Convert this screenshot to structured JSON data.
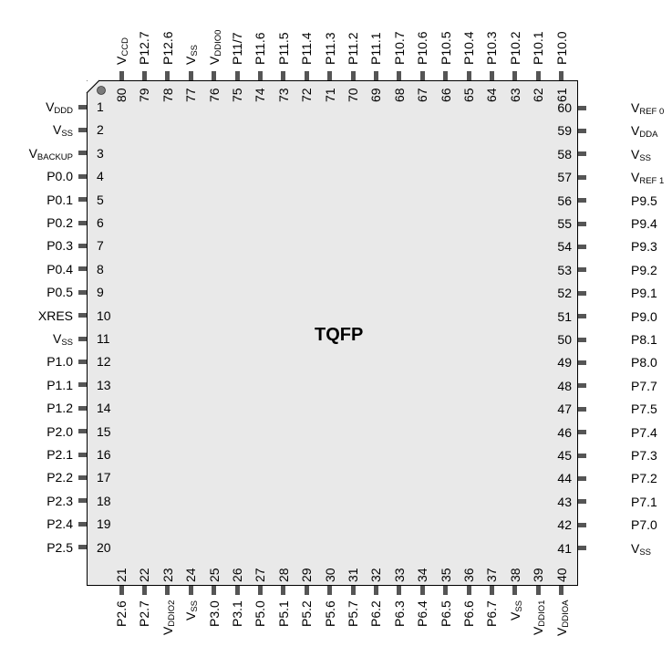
{
  "package_label": "TQFP",
  "left_pins": [
    {
      "num": "1",
      "label": [
        [
          "V",
          ""
        ],
        [
          "DDD",
          "sub"
        ]
      ]
    },
    {
      "num": "2",
      "label": [
        [
          "V",
          ""
        ],
        [
          "SS",
          "sub"
        ]
      ]
    },
    {
      "num": "3",
      "label": [
        [
          "V",
          ""
        ],
        [
          "BACKUP",
          "sub"
        ]
      ]
    },
    {
      "num": "4",
      "label": [
        [
          "P0.0",
          ""
        ]
      ]
    },
    {
      "num": "5",
      "label": [
        [
          "P0.1",
          ""
        ]
      ]
    },
    {
      "num": "6",
      "label": [
        [
          "P0.2",
          ""
        ]
      ]
    },
    {
      "num": "7",
      "label": [
        [
          "P0.3",
          ""
        ]
      ]
    },
    {
      "num": "8",
      "label": [
        [
          "P0.4",
          ""
        ]
      ]
    },
    {
      "num": "9",
      "label": [
        [
          "P0.5",
          ""
        ]
      ]
    },
    {
      "num": "10",
      "label": [
        [
          "XRES",
          ""
        ]
      ]
    },
    {
      "num": "11",
      "label": [
        [
          "V",
          ""
        ],
        [
          "SS",
          "sub"
        ]
      ]
    },
    {
      "num": "12",
      "label": [
        [
          "P1.0",
          ""
        ]
      ]
    },
    {
      "num": "13",
      "label": [
        [
          "P1.1",
          ""
        ]
      ]
    },
    {
      "num": "14",
      "label": [
        [
          "P1.2",
          ""
        ]
      ]
    },
    {
      "num": "15",
      "label": [
        [
          "P2.0",
          ""
        ]
      ]
    },
    {
      "num": "16",
      "label": [
        [
          "P2.1",
          ""
        ]
      ]
    },
    {
      "num": "17",
      "label": [
        [
          "P2.2",
          ""
        ]
      ]
    },
    {
      "num": "18",
      "label": [
        [
          "P2.3",
          ""
        ]
      ]
    },
    {
      "num": "19",
      "label": [
        [
          "P2.4",
          ""
        ]
      ]
    },
    {
      "num": "20",
      "label": [
        [
          "P2.5",
          ""
        ]
      ]
    }
  ],
  "right_pins": [
    {
      "num": "60",
      "label": [
        [
          "V",
          ""
        ],
        [
          "REF 0",
          "sub"
        ]
      ]
    },
    {
      "num": "59",
      "label": [
        [
          "V",
          ""
        ],
        [
          "DDA",
          "sub"
        ]
      ]
    },
    {
      "num": "58",
      "label": [
        [
          "V",
          ""
        ],
        [
          "SS",
          "sub"
        ]
      ]
    },
    {
      "num": "57",
      "label": [
        [
          "V",
          ""
        ],
        [
          "REF 1",
          "sub"
        ]
      ]
    },
    {
      "num": "56",
      "label": [
        [
          "P9.5",
          ""
        ]
      ]
    },
    {
      "num": "55",
      "label": [
        [
          "P9.4",
          ""
        ]
      ]
    },
    {
      "num": "54",
      "label": [
        [
          "P9.3",
          ""
        ]
      ]
    },
    {
      "num": "53",
      "label": [
        [
          "P9.2",
          ""
        ]
      ]
    },
    {
      "num": "52",
      "label": [
        [
          "P9.1",
          ""
        ]
      ]
    },
    {
      "num": "51",
      "label": [
        [
          "P9.0",
          ""
        ]
      ]
    },
    {
      "num": "50",
      "label": [
        [
          "P8.1",
          ""
        ]
      ]
    },
    {
      "num": "49",
      "label": [
        [
          "P8.0",
          ""
        ]
      ]
    },
    {
      "num": "48",
      "label": [
        [
          "P7.7",
          ""
        ]
      ]
    },
    {
      "num": "47",
      "label": [
        [
          "P7.5",
          ""
        ]
      ]
    },
    {
      "num": "46",
      "label": [
        [
          "P7.4",
          ""
        ]
      ]
    },
    {
      "num": "45",
      "label": [
        [
          "P7.3",
          ""
        ]
      ]
    },
    {
      "num": "44",
      "label": [
        [
          "P7.2",
          ""
        ]
      ]
    },
    {
      "num": "43",
      "label": [
        [
          "P7.1",
          ""
        ]
      ]
    },
    {
      "num": "42",
      "label": [
        [
          "P7.0",
          ""
        ]
      ]
    },
    {
      "num": "41",
      "label": [
        [
          "V",
          ""
        ],
        [
          "SS",
          "sub"
        ]
      ]
    }
  ],
  "top_pins": [
    {
      "num": "80",
      "label": [
        [
          "V",
          ""
        ],
        [
          "CCD",
          "sub"
        ]
      ]
    },
    {
      "num": "79",
      "label": [
        [
          "P12.7",
          ""
        ]
      ]
    },
    {
      "num": "78",
      "label": [
        [
          "P12.6",
          ""
        ]
      ]
    },
    {
      "num": "77",
      "label": [
        [
          "V",
          ""
        ],
        [
          "SS",
          "sub"
        ]
      ]
    },
    {
      "num": "76",
      "label": [
        [
          "V",
          ""
        ],
        [
          "DDIO0",
          "sub"
        ]
      ]
    },
    {
      "num": "75",
      "label": [
        [
          "P11/7",
          ""
        ]
      ]
    },
    {
      "num": "74",
      "label": [
        [
          "P11.6",
          ""
        ]
      ]
    },
    {
      "num": "73",
      "label": [
        [
          "P11.5",
          ""
        ]
      ]
    },
    {
      "num": "72",
      "label": [
        [
          "P11.4",
          ""
        ]
      ]
    },
    {
      "num": "71",
      "label": [
        [
          "P11.3",
          ""
        ]
      ]
    },
    {
      "num": "70",
      "label": [
        [
          "P11.2",
          ""
        ]
      ]
    },
    {
      "num": "69",
      "label": [
        [
          "P11.1",
          ""
        ]
      ]
    },
    {
      "num": "68",
      "label": [
        [
          "P10.7",
          ""
        ]
      ]
    },
    {
      "num": "67",
      "label": [
        [
          "P10.6",
          ""
        ]
      ]
    },
    {
      "num": "66",
      "label": [
        [
          "P10.5",
          ""
        ]
      ]
    },
    {
      "num": "65",
      "label": [
        [
          "P10.4",
          ""
        ]
      ]
    },
    {
      "num": "64",
      "label": [
        [
          "P10.3",
          ""
        ]
      ]
    },
    {
      "num": "63",
      "label": [
        [
          "P10.2",
          ""
        ]
      ]
    },
    {
      "num": "62",
      "label": [
        [
          "P10.1",
          ""
        ]
      ]
    },
    {
      "num": "61",
      "label": [
        [
          "P10.0",
          ""
        ]
      ]
    }
  ],
  "bottom_pins": [
    {
      "num": "21",
      "label": [
        [
          "P2.6",
          ""
        ]
      ]
    },
    {
      "num": "22",
      "label": [
        [
          "P2.7",
          ""
        ]
      ]
    },
    {
      "num": "23",
      "label": [
        [
          "V",
          ""
        ],
        [
          "DDIO2",
          "sub"
        ]
      ]
    },
    {
      "num": "24",
      "label": [
        [
          "V",
          ""
        ],
        [
          "SS",
          "sub"
        ]
      ]
    },
    {
      "num": "25",
      "label": [
        [
          "P3.0",
          ""
        ]
      ]
    },
    {
      "num": "26",
      "label": [
        [
          "P3.1",
          ""
        ]
      ]
    },
    {
      "num": "27",
      "label": [
        [
          "P5.0",
          ""
        ]
      ]
    },
    {
      "num": "28",
      "label": [
        [
          "P5.1",
          ""
        ]
      ]
    },
    {
      "num": "29",
      "label": [
        [
          "P5.2",
          ""
        ]
      ]
    },
    {
      "num": "30",
      "label": [
        [
          "P5.6",
          ""
        ]
      ]
    },
    {
      "num": "31",
      "label": [
        [
          "P5.7",
          ""
        ]
      ]
    },
    {
      "num": "32",
      "label": [
        [
          "P6.2",
          ""
        ]
      ]
    },
    {
      "num": "33",
      "label": [
        [
          "P6.3",
          ""
        ]
      ]
    },
    {
      "num": "34",
      "label": [
        [
          "P6.4",
          ""
        ]
      ]
    },
    {
      "num": "35",
      "label": [
        [
          "P6.5",
          ""
        ]
      ]
    },
    {
      "num": "36",
      "label": [
        [
          "P6.6",
          ""
        ]
      ]
    },
    {
      "num": "37",
      "label": [
        [
          "P6.7",
          ""
        ]
      ]
    },
    {
      "num": "38",
      "label": [
        [
          "V",
          ""
        ],
        [
          "SS",
          "sub"
        ]
      ]
    },
    {
      "num": "39",
      "label": [
        [
          "V",
          ""
        ],
        [
          "DDIO1",
          "sub"
        ]
      ]
    },
    {
      "num": "40",
      "label": [
        [
          "V",
          ""
        ],
        [
          "DDIOA",
          "sub"
        ]
      ]
    }
  ]
}
